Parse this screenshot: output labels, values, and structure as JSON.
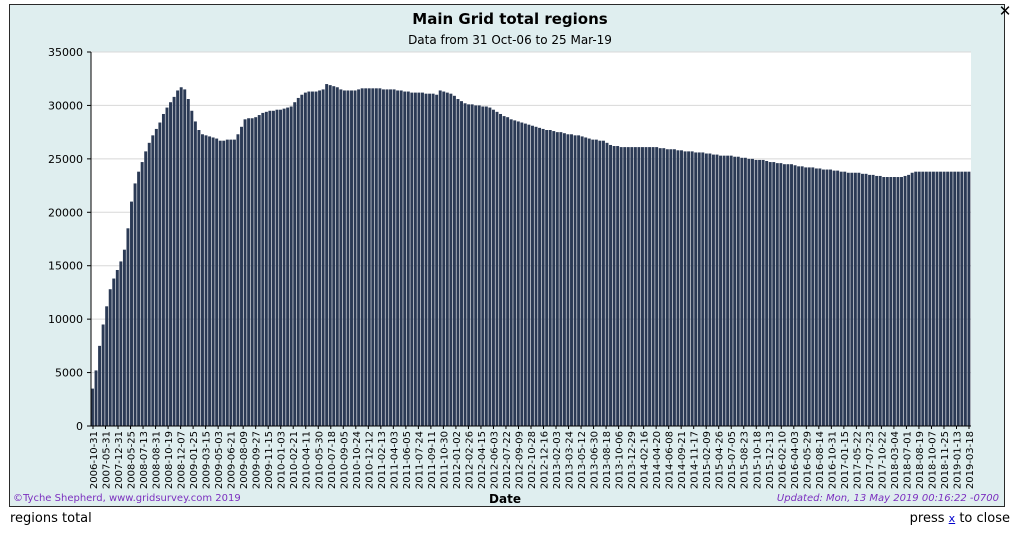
{
  "close_glyph": "✕",
  "footer": {
    "left_text": "regions total",
    "press_text": "press",
    "key_text": "x",
    "close_text": "to close"
  },
  "chart_data": {
    "type": "bar",
    "title": "Main Grid total regions",
    "subtitle": "Data from 31 Oct-06 to 25 Mar-19",
    "xlabel": "Date",
    "ylabel": "",
    "ylim": [
      0,
      35000
    ],
    "yticks": [
      0,
      5000,
      10000,
      15000,
      20000,
      25000,
      30000,
      35000
    ],
    "xtick_labels": [
      "2006-10-31",
      "2007-05-31",
      "2007-12-31",
      "2008-05-25",
      "2008-07-13",
      "2008-08-31",
      "2008-10-19",
      "2008-12-07",
      "2009-01-25",
      "2009-03-15",
      "2009-05-03",
      "2009-06-21",
      "2009-08-09",
      "2009-09-27",
      "2009-11-15",
      "2010-01-03",
      "2010-02-21",
      "2010-04-11",
      "2010-05-30",
      "2010-07-18",
      "2010-09-05",
      "2010-10-24",
      "2010-12-12",
      "2011-02-13",
      "2011-04-03",
      "2011-06-05",
      "2011-07-24",
      "2011-09-11",
      "2011-10-30",
      "2012-01-02",
      "2012-02-26",
      "2012-04-15",
      "2012-06-03",
      "2012-07-22",
      "2012-09-09",
      "2012-10-28",
      "2012-12-16",
      "2013-02-03",
      "2013-03-24",
      "2013-05-12",
      "2013-06-30",
      "2013-08-18",
      "2013-10-06",
      "2013-12-29",
      "2014-02-16",
      "2014-04-20",
      "2014-06-08",
      "2014-09-21",
      "2014-11-17",
      "2015-02-09",
      "2015-04-26",
      "2015-07-05",
      "2015-08-23",
      "2015-10-18",
      "2015-12-13",
      "2016-02-10",
      "2016-04-03",
      "2016-05-29",
      "2016-08-14",
      "2016-10-31",
      "2017-01-15",
      "2017-05-22",
      "2017-07-23",
      "2017-10-22",
      "2018-03-04",
      "2018-07-01",
      "2018-08-19",
      "2018-10-07",
      "2018-11-25",
      "2019-01-13",
      "2019-03-18"
    ],
    "series": [
      {
        "name": "regions total",
        "values": [
          3500,
          5200,
          7500,
          9500,
          11200,
          12800,
          13800,
          14600,
          15400,
          16500,
          18500,
          21000,
          22700,
          23800,
          24700,
          25700,
          26500,
          27200,
          27800,
          28400,
          29200,
          29800,
          30300,
          30800,
          31400,
          31700,
          31500,
          30600,
          29500,
          28500,
          27700,
          27300,
          27200,
          27100,
          27000,
          26900,
          26700,
          26700,
          26800,
          26800,
          26800,
          27300,
          28000,
          28700,
          28800,
          28800,
          28900,
          29100,
          29300,
          29400,
          29500,
          29500,
          29600,
          29600,
          29700,
          29800,
          29900,
          30300,
          30700,
          31000,
          31200,
          31300,
          31300,
          31300,
          31400,
          31500,
          32000,
          31900,
          31800,
          31700,
          31500,
          31400,
          31400,
          31400,
          31400,
          31500,
          31600,
          31600,
          31600,
          31600,
          31600,
          31600,
          31500,
          31500,
          31500,
          31500,
          31400,
          31400,
          31300,
          31300,
          31200,
          31200,
          31200,
          31200,
          31100,
          31100,
          31100,
          31000,
          31400,
          31300,
          31200,
          31100,
          30900,
          30600,
          30400,
          30200,
          30100,
          30100,
          30000,
          30000,
          29900,
          29900,
          29800,
          29600,
          29400,
          29200,
          29000,
          28900,
          28700,
          28600,
          28500,
          28400,
          28300,
          28200,
          28100,
          28000,
          27900,
          27800,
          27700,
          27700,
          27600,
          27500,
          27500,
          27400,
          27300,
          27300,
          27200,
          27200,
          27100,
          27000,
          26900,
          26800,
          26800,
          26700,
          26700,
          26500,
          26300,
          26200,
          26200,
          26100,
          26100,
          26100,
          26100,
          26100,
          26100,
          26100,
          26100,
          26100,
          26100,
          26100,
          26000,
          26000,
          25900,
          25900,
          25900,
          25800,
          25800,
          25700,
          25700,
          25700,
          25600,
          25600,
          25600,
          25500,
          25500,
          25400,
          25400,
          25300,
          25300,
          25300,
          25300,
          25200,
          25200,
          25100,
          25100,
          25000,
          25000,
          24900,
          24900,
          24900,
          24800,
          24700,
          24700,
          24600,
          24600,
          24500,
          24500,
          24500,
          24400,
          24300,
          24300,
          24200,
          24200,
          24200,
          24100,
          24100,
          24000,
          24000,
          24000,
          23900,
          23900,
          23800,
          23800,
          23700,
          23700,
          23700,
          23700,
          23600,
          23600,
          23500,
          23500,
          23400,
          23400,
          23300,
          23300,
          23300,
          23300,
          23300,
          23300,
          23400,
          23500,
          23700,
          23800,
          23800,
          23800,
          23800,
          23800,
          23800,
          23800,
          23800,
          23800,
          23800,
          23800,
          23800,
          23800,
          23800,
          23800,
          23800
        ]
      }
    ],
    "bar_color": "#2b3a55",
    "grid": true,
    "credit": "©Tyche Shepherd, www.gridsurvey.com 2019",
    "updated": "Updated: Mon, 13 May 2019 00:16:22 -0700"
  }
}
